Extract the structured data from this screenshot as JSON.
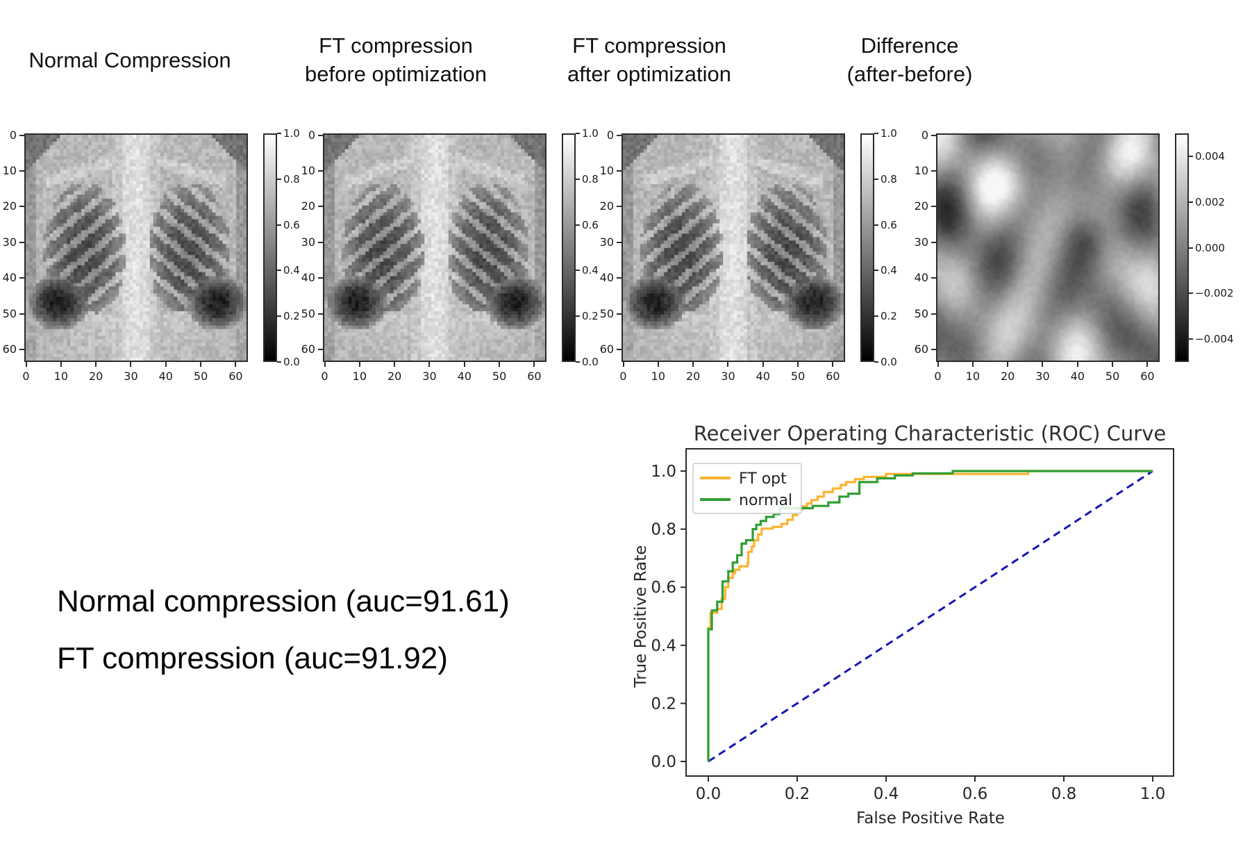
{
  "panels": [
    {
      "id": "normal",
      "title_lines": [
        "Normal Compression"
      ],
      "kind": "xray",
      "seed": 1,
      "xticks": [
        0,
        10,
        20,
        30,
        40,
        50,
        60
      ],
      "yticks": [
        0,
        10,
        20,
        30,
        40,
        50,
        60
      ],
      "colorbar": {
        "labels": [
          "1.0",
          "0.8",
          "0.6",
          "0.4",
          "0.2",
          "0.0"
        ],
        "positions": [
          0,
          0.2,
          0.4,
          0.6,
          0.8,
          1.0
        ]
      }
    },
    {
      "id": "ft-before",
      "title_lines": [
        "FT compression",
        "before optimization"
      ],
      "kind": "xray",
      "seed": 2,
      "xticks": [
        0,
        10,
        20,
        30,
        40,
        50,
        60
      ],
      "yticks": [
        0,
        10,
        20,
        30,
        40,
        50,
        60
      ],
      "colorbar": {
        "labels": [
          "1.0",
          "0.8",
          "0.6",
          "0.4",
          "0.2",
          "0.0"
        ],
        "positions": [
          0,
          0.2,
          0.4,
          0.6,
          0.8,
          1.0
        ]
      }
    },
    {
      "id": "ft-after",
      "title_lines": [
        "FT compression",
        "after optimization"
      ],
      "kind": "xray",
      "seed": 3,
      "xticks": [
        0,
        10,
        20,
        30,
        40,
        50,
        60
      ],
      "yticks": [
        0,
        10,
        20,
        30,
        40,
        50,
        60
      ],
      "colorbar": {
        "labels": [
          "1.0",
          "0.8",
          "0.6",
          "0.4",
          "0.2",
          "0.0"
        ],
        "positions": [
          0,
          0.2,
          0.4,
          0.6,
          0.8,
          1.0
        ]
      }
    },
    {
      "id": "difference",
      "title_lines": [
        "Difference",
        "(after-before)"
      ],
      "kind": "diff",
      "seed": 4,
      "xticks": [
        0,
        10,
        20,
        30,
        40,
        50,
        60
      ],
      "yticks": [
        0,
        10,
        20,
        30,
        40,
        50,
        60
      ],
      "colorbar": {
        "labels": [
          "0.004",
          "0.002",
          "0.000",
          "−0.002",
          "−0.004"
        ],
        "positions": [
          0.1,
          0.3,
          0.5,
          0.7,
          0.9
        ]
      }
    }
  ],
  "annotation": {
    "line1": "Normal compression (auc=91.61)",
    "line2": "FT compression (auc=91.92)"
  },
  "chart_data": [
    {
      "type": "line",
      "title": "Receiver Operating Characteristic (ROC) Curve",
      "xlabel": "False Positive Rate",
      "ylabel": "True Positive Rate",
      "xlim": [
        0,
        1
      ],
      "ylim": [
        0,
        1
      ],
      "xticks": [
        "0.0",
        "0.2",
        "0.4",
        "0.6",
        "0.8",
        "1.0"
      ],
      "yticks": [
        "0.0",
        "0.2",
        "0.4",
        "0.6",
        "0.8",
        "1.0"
      ],
      "grid": false,
      "legend_position": "upper left",
      "series": [
        {
          "name": "FT opt",
          "color": "#fcb32e",
          "points": [
            [
              0,
              0
            ],
            [
              0,
              0.46
            ],
            [
              0.005,
              0.46
            ],
            [
              0.005,
              0.512
            ],
            [
              0.02,
              0.512
            ],
            [
              0.02,
              0.525
            ],
            [
              0.03,
              0.525
            ],
            [
              0.03,
              0.56
            ],
            [
              0.038,
              0.56
            ],
            [
              0.038,
              0.6
            ],
            [
              0.045,
              0.6
            ],
            [
              0.045,
              0.632
            ],
            [
              0.055,
              0.632
            ],
            [
              0.055,
              0.648
            ],
            [
              0.06,
              0.648
            ],
            [
              0.06,
              0.66
            ],
            [
              0.07,
              0.66
            ],
            [
              0.07,
              0.672
            ],
            [
              0.088,
              0.672
            ],
            [
              0.088,
              0.682
            ],
            [
              0.09,
              0.682
            ],
            [
              0.09,
              0.722
            ],
            [
              0.098,
              0.722
            ],
            [
              0.098,
              0.74
            ],
            [
              0.103,
              0.74
            ],
            [
              0.103,
              0.762
            ],
            [
              0.112,
              0.762
            ],
            [
              0.112,
              0.782
            ],
            [
              0.12,
              0.782
            ],
            [
              0.12,
              0.802
            ],
            [
              0.145,
              0.802
            ],
            [
              0.145,
              0.808
            ],
            [
              0.165,
              0.808
            ],
            [
              0.165,
              0.818
            ],
            [
              0.178,
              0.818
            ],
            [
              0.178,
              0.832
            ],
            [
              0.19,
              0.832
            ],
            [
              0.19,
              0.848
            ],
            [
              0.2,
              0.848
            ],
            [
              0.2,
              0.868
            ],
            [
              0.21,
              0.868
            ],
            [
              0.21,
              0.878
            ],
            [
              0.222,
              0.878
            ],
            [
              0.222,
              0.888
            ],
            [
              0.232,
              0.888
            ],
            [
              0.232,
              0.9
            ],
            [
              0.246,
              0.9
            ],
            [
              0.246,
              0.912
            ],
            [
              0.26,
              0.912
            ],
            [
              0.26,
              0.928
            ],
            [
              0.28,
              0.928
            ],
            [
              0.28,
              0.94
            ],
            [
              0.298,
              0.94
            ],
            [
              0.298,
              0.952
            ],
            [
              0.31,
              0.952
            ],
            [
              0.31,
              0.962
            ],
            [
              0.33,
              0.962
            ],
            [
              0.33,
              0.972
            ],
            [
              0.35,
              0.972
            ],
            [
              0.35,
              0.98
            ],
            [
              0.4,
              0.98
            ],
            [
              0.4,
              0.99
            ],
            [
              0.72,
              0.99
            ],
            [
              0.72,
              1
            ],
            [
              1,
              1
            ]
          ]
        },
        {
          "name": "normal",
          "color": "#2e9e33",
          "points": [
            [
              0,
              0
            ],
            [
              0,
              0.455
            ],
            [
              0.008,
              0.455
            ],
            [
              0.008,
              0.52
            ],
            [
              0.02,
              0.52
            ],
            [
              0.02,
              0.55
            ],
            [
              0.032,
              0.55
            ],
            [
              0.032,
              0.62
            ],
            [
              0.045,
              0.62
            ],
            [
              0.045,
              0.655
            ],
            [
              0.055,
              0.655
            ],
            [
              0.055,
              0.685
            ],
            [
              0.065,
              0.685
            ],
            [
              0.065,
              0.71
            ],
            [
              0.075,
              0.71
            ],
            [
              0.075,
              0.75
            ],
            [
              0.085,
              0.75
            ],
            [
              0.085,
              0.762
            ],
            [
              0.1,
              0.762
            ],
            [
              0.1,
              0.8
            ],
            [
              0.108,
              0.8
            ],
            [
              0.108,
              0.815
            ],
            [
              0.118,
              0.815
            ],
            [
              0.118,
              0.828
            ],
            [
              0.13,
              0.828
            ],
            [
              0.13,
              0.842
            ],
            [
              0.147,
              0.842
            ],
            [
              0.147,
              0.852
            ],
            [
              0.16,
              0.852
            ],
            [
              0.16,
              0.872
            ],
            [
              0.235,
              0.872
            ],
            [
              0.235,
              0.88
            ],
            [
              0.27,
              0.88
            ],
            [
              0.27,
              0.892
            ],
            [
              0.295,
              0.892
            ],
            [
              0.295,
              0.912
            ],
            [
              0.315,
              0.912
            ],
            [
              0.315,
              0.922
            ],
            [
              0.34,
              0.922
            ],
            [
              0.34,
              0.962
            ],
            [
              0.38,
              0.962
            ],
            [
              0.38,
              0.975
            ],
            [
              0.42,
              0.975
            ],
            [
              0.42,
              0.985
            ],
            [
              0.46,
              0.985
            ],
            [
              0.46,
              0.992
            ],
            [
              0.55,
              0.992
            ],
            [
              0.55,
              1
            ],
            [
              1,
              1
            ]
          ]
        }
      ],
      "diagonal": {
        "style": "dashed",
        "color": "#1515b5",
        "from": [
          0,
          0
        ],
        "to": [
          1,
          1
        ]
      }
    },
    {
      "type": "heatmap",
      "title": "Normal Compression",
      "x_range": [
        0,
        63
      ],
      "y_range": [
        0,
        63
      ],
      "colorbar_ticks": [
        1.0,
        0.8,
        0.6,
        0.4,
        0.2,
        0.0
      ]
    },
    {
      "type": "heatmap",
      "title": "FT compression before optimization",
      "x_range": [
        0,
        63
      ],
      "y_range": [
        0,
        63
      ],
      "colorbar_ticks": [
        1.0,
        0.8,
        0.6,
        0.4,
        0.2,
        0.0
      ]
    },
    {
      "type": "heatmap",
      "title": "FT compression after optimization",
      "x_range": [
        0,
        63
      ],
      "y_range": [
        0,
        63
      ],
      "colorbar_ticks": [
        1.0,
        0.8,
        0.6,
        0.4,
        0.2,
        0.0
      ]
    },
    {
      "type": "heatmap",
      "title": "Difference (after-before)",
      "x_range": [
        0,
        63
      ],
      "y_range": [
        0,
        63
      ],
      "colorbar_ticks": [
        0.004,
        0.002,
        0.0,
        -0.002,
        -0.004
      ]
    }
  ],
  "styles": {
    "curve_orange": "#fcb32e",
    "curve_green": "#2e9e33",
    "diagonal_blue": "#1515b5",
    "spine_color": "#2b2b2b",
    "tick_text_color": "#262626"
  }
}
